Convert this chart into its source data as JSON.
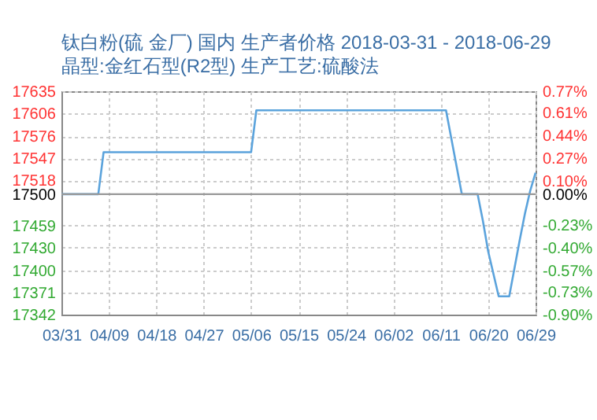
{
  "chart_data": {
    "type": "line",
    "title": "钛白粉(硫 金厂) 国内 生产者价格 2018-03-31 - 2018-06-29",
    "subtitle": "晶型:金红石型(R2型) 生产工艺:硫酸法",
    "x": [
      "2018-03-31",
      "2018-04-07",
      "2018-04-08",
      "2018-05-06",
      "2018-05-07",
      "2018-06-12",
      "2018-06-15",
      "2018-06-18",
      "2018-06-19",
      "2018-06-20",
      "2018-06-22",
      "2018-06-24",
      "2018-06-26",
      "2018-06-27",
      "2018-06-28",
      "2018-06-29"
    ],
    "series": [
      {
        "color": "#5ba3dc",
        "values": [
          17500,
          17500,
          17555,
          17555,
          17610,
          17610,
          17500,
          17500,
          17465,
          17425,
          17366,
          17366,
          17440,
          17475,
          17505,
          17528
        ]
      }
    ],
    "xlim": [
      "2018-03-31",
      "2018-06-29"
    ],
    "xticks": [
      {
        "value": "2018-03-31",
        "label": "03/31"
      },
      {
        "value": "2018-04-09",
        "label": "04/09"
      },
      {
        "value": "2018-04-18",
        "label": "04/18"
      },
      {
        "value": "2018-04-27",
        "label": "04/27"
      },
      {
        "value": "2018-05-06",
        "label": "05/06"
      },
      {
        "value": "2018-05-15",
        "label": "05/15"
      },
      {
        "value": "2018-05-24",
        "label": "05/24"
      },
      {
        "value": "2018-06-02",
        "label": "06/02"
      },
      {
        "value": "2018-06-11",
        "label": "06/11"
      },
      {
        "value": "2018-06-20",
        "label": "06/20"
      },
      {
        "value": "2018-06-29",
        "label": "06/29"
      }
    ],
    "ylim": [
      17342,
      17635
    ],
    "yticks": [
      17342,
      17371,
      17400,
      17430,
      17459,
      17500,
      17518,
      17547,
      17576,
      17606,
      17635
    ],
    "y2lim": [
      -0.9,
      0.77
    ],
    "y2ticks": [
      {
        "value": -0.9,
        "label": "-0.90%"
      },
      {
        "value": -0.73,
        "label": "-0.73%"
      },
      {
        "value": -0.57,
        "label": "-0.57%"
      },
      {
        "value": -0.4,
        "label": "-0.40%"
      },
      {
        "value": -0.23,
        "label": "-0.23%"
      },
      {
        "value": 0,
        "label": "0.00%"
      },
      {
        "value": 0.1,
        "label": "0.10%"
      },
      {
        "value": 0.27,
        "label": "0.27%"
      },
      {
        "value": 0.44,
        "label": "0.44%"
      },
      {
        "value": 0.61,
        "label": "0.61%"
      },
      {
        "value": 0.77,
        "label": "0.77%"
      }
    ],
    "ref_lines": [
      {
        "axis": "y",
        "value": 17500,
        "color": "#999999"
      }
    ],
    "grid": true,
    "marker": "none",
    "line_style": "solid"
  }
}
